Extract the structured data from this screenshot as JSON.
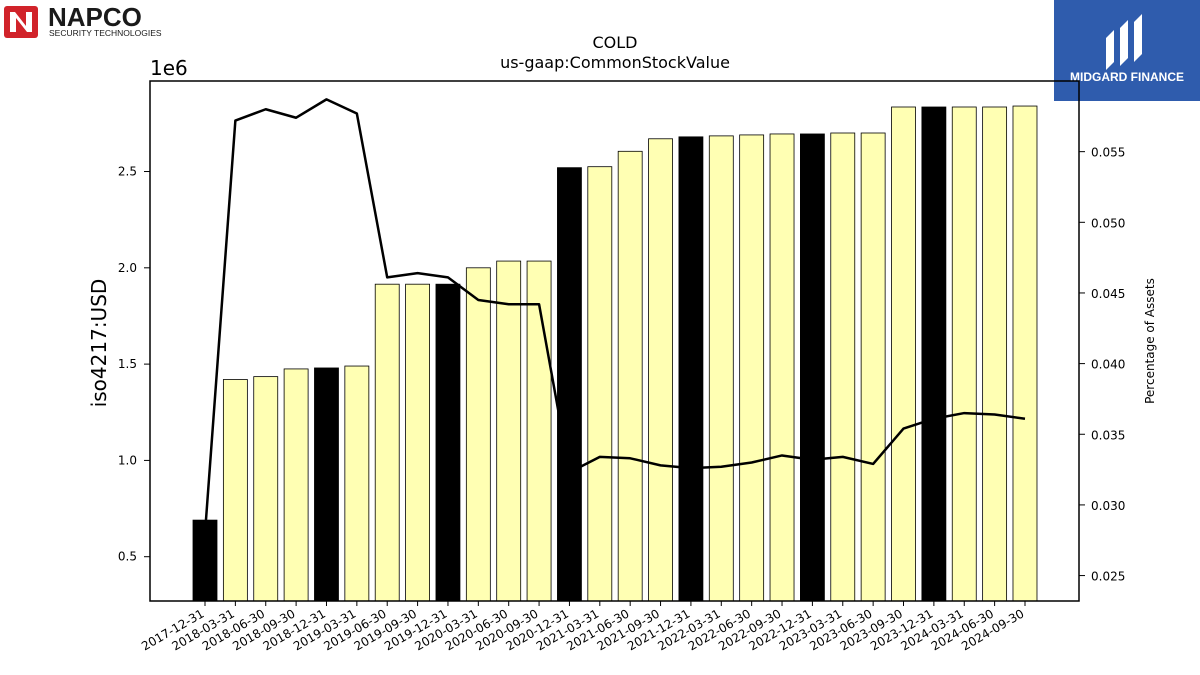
{
  "logos": {
    "napco": {
      "name": "NAPCO",
      "tagline": "SECURITY TECHNOLOGIES",
      "color": "#d1232a"
    },
    "midgard": {
      "name": "MIDGARD FINANCE",
      "color": "#2f5cad"
    }
  },
  "chart_data": {
    "type": "bar",
    "title": "COLD",
    "subtitle": "us-gaap:CommonStockValue",
    "ylabel": "iso4217:USD",
    "y2label": "Percentage of Assets",
    "offset_label": "1e6",
    "ylim": [
      0.27,
      2.97
    ],
    "y2lim": [
      0.0232,
      0.06
    ],
    "yticks": [
      {
        "value": 0.5,
        "label": "0.5"
      },
      {
        "value": 1.0,
        "label": "1.0"
      },
      {
        "value": 1.5,
        "label": "1.5"
      },
      {
        "value": 2.0,
        "label": "2.0"
      },
      {
        "value": 2.5,
        "label": "2.5"
      }
    ],
    "y2ticks": [
      {
        "value": 0.025,
        "label": "0.025"
      },
      {
        "value": 0.03,
        "label": "0.030"
      },
      {
        "value": 0.035,
        "label": "0.035"
      },
      {
        "value": 0.04,
        "label": "0.040"
      },
      {
        "value": 0.045,
        "label": "0.045"
      },
      {
        "value": 0.05,
        "label": "0.050"
      },
      {
        "value": 0.055,
        "label": "0.055"
      }
    ],
    "categories": [
      "2017-12-31",
      "2018-03-31",
      "2018-06-30",
      "2018-09-30",
      "2018-12-31",
      "2019-03-31",
      "2019-06-30",
      "2019-09-30",
      "2019-12-31",
      "2020-03-31",
      "2020-06-30",
      "2020-09-30",
      "2020-12-31",
      "2021-03-31",
      "2021-06-30",
      "2021-09-30",
      "2021-12-31",
      "2022-03-31",
      "2022-06-30",
      "2022-09-30",
      "2022-12-31",
      "2023-03-31",
      "2023-06-30",
      "2023-09-30",
      "2023-12-31",
      "2024-03-31",
      "2024-06-30",
      "2024-09-30"
    ],
    "values": [
      0.69,
      1.42,
      1.435,
      1.475,
      1.48,
      1.49,
      1.915,
      1.915,
      1.915,
      2.0,
      2.035,
      2.035,
      2.52,
      2.525,
      2.605,
      2.67,
      2.68,
      2.685,
      2.69,
      2.695,
      2.695,
      2.7,
      2.7,
      2.835,
      2.835,
      2.835,
      2.835,
      2.84
    ],
    "highlight": [
      true,
      false,
      false,
      false,
      true,
      false,
      false,
      false,
      true,
      false,
      false,
      false,
      true,
      false,
      false,
      false,
      true,
      false,
      false,
      false,
      true,
      false,
      false,
      false,
      true,
      false,
      false,
      false
    ],
    "line": [
      0.028,
      0.0572,
      0.058,
      0.0574,
      0.0587,
      0.0577,
      0.0461,
      0.0464,
      0.0461,
      0.0445,
      0.0442,
      0.0442,
      0.0323,
      0.0334,
      0.0333,
      0.0328,
      0.0326,
      0.0327,
      0.033,
      0.0335,
      0.0332,
      0.0334,
      0.0329,
      0.0354,
      0.0361,
      0.0365,
      0.0364,
      0.0361
    ],
    "colors": {
      "bar": "#ffffb3",
      "bar_highlight": "#000000",
      "bar_edge": "#000000",
      "line": "#000000"
    }
  }
}
